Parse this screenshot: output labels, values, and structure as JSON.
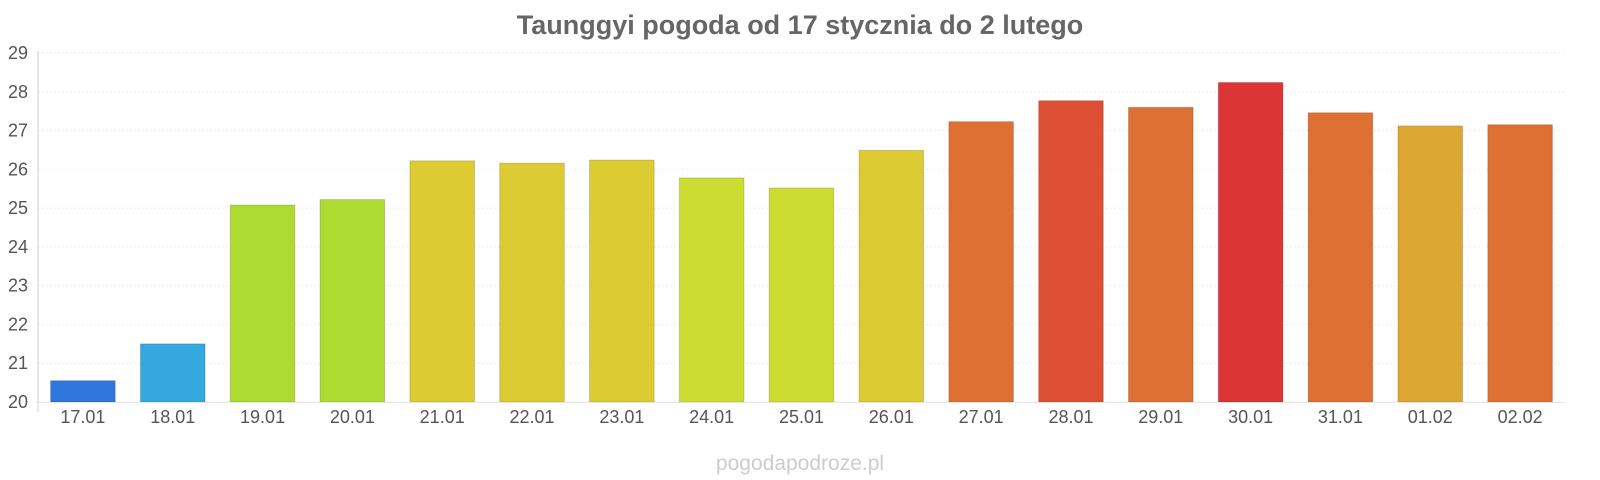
{
  "chart_data": {
    "type": "bar",
    "title": "Taunggyi pogoda od 17 stycznia do 2 lutego",
    "xlabel": "",
    "ylabel": "",
    "ylim": [
      20,
      29
    ],
    "yticks": [
      "20",
      "21",
      "22",
      "23",
      "24",
      "25",
      "26",
      "27",
      "28",
      "29"
    ],
    "grid": true,
    "categories": [
      "17.01",
      "18.01",
      "19.01",
      "20.01",
      "21.01",
      "22.01",
      "23.01",
      "24.01",
      "25.01",
      "26.01",
      "27.01",
      "28.01",
      "29.01",
      "30.01",
      "31.01",
      "01.02",
      "02.02"
    ],
    "values": [
      20.55,
      21.5,
      25.08,
      25.22,
      26.22,
      26.16,
      26.24,
      25.78,
      25.52,
      26.49,
      27.23,
      27.77,
      27.6,
      28.24,
      27.46,
      27.12,
      27.15
    ],
    "colors": [
      "#2f76dd",
      "#35a9de",
      "#aedb32",
      "#aedb32",
      "#dccb33",
      "#dccb33",
      "#dccb33",
      "#ccdc32",
      "#ccdc32",
      "#dccb33",
      "#de7033",
      "#dd5033",
      "#de7033",
      "#dc3535",
      "#de7033",
      "#dca733",
      "#de7033"
    ]
  },
  "watermark": "pogodapodroze.pl"
}
